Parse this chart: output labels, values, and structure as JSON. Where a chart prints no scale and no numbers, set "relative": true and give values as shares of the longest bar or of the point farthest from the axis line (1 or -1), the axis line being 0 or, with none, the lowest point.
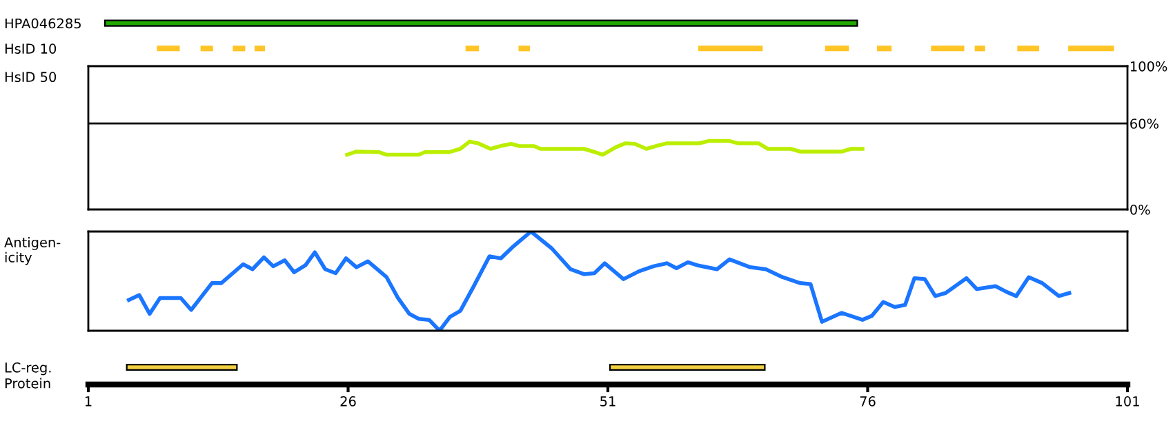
{
  "chart_data": [
    {
      "type": "bar",
      "orientation": "horizontal",
      "categories": [
        "HPA046285",
        "HsID 10"
      ],
      "xlim": [
        1,
        101
      ],
      "tick_labels": "y",
      "grid": false,
      "legend": false,
      "series": [
        {
          "color": "#22aa00",
          "base": [
            2.6,
            null
          ],
          "values": [
            72.4,
            null
          ]
        },
        {
          "color": "#ffc425",
          "base": [
            null,
            7.6
          ],
          "values": [
            null,
            2.2
          ]
        },
        {
          "color": "#ffc425",
          "base": [
            null,
            11.8
          ],
          "values": [
            null,
            1.2
          ]
        },
        {
          "color": "#ffc425",
          "base": [
            null,
            14.9
          ],
          "values": [
            null,
            1.2
          ]
        },
        {
          "color": "#ffc425",
          "base": [
            null,
            17.0
          ],
          "values": [
            null,
            1.0
          ]
        },
        {
          "color": "#ffc425",
          "base": [
            null,
            37.3
          ],
          "values": [
            null,
            1.3
          ]
        },
        {
          "color": "#ffc425",
          "base": [
            null,
            42.4
          ],
          "values": [
            null,
            1.1
          ]
        },
        {
          "color": "#ffc425",
          "base": [
            null,
            59.7
          ],
          "values": [
            null,
            6.2
          ]
        },
        {
          "color": "#ffc425",
          "base": [
            null,
            71.9
          ],
          "values": [
            null,
            2.3
          ]
        },
        {
          "color": "#ffc425",
          "base": [
            null,
            76.9
          ],
          "values": [
            null,
            1.4
          ]
        },
        {
          "color": "#ffc425",
          "base": [
            null,
            82.1
          ],
          "values": [
            null,
            3.2
          ]
        },
        {
          "color": "#ffc425",
          "base": [
            null,
            86.3
          ],
          "values": [
            null,
            1.0
          ]
        },
        {
          "color": "#ffc425",
          "base": [
            null,
            90.4
          ],
          "values": [
            null,
            2.1
          ]
        },
        {
          "color": "#ffc425",
          "base": [
            null,
            95.3
          ],
          "values": [
            null,
            4.4
          ]
        }
      ]
    },
    {
      "type": "line",
      "ylabel": "HsID 50",
      "xlim": [
        1,
        101
      ],
      "ylim": [
        0,
        100
      ],
      "yticks": [
        {
          "value": 100,
          "label": "100%"
        },
        {
          "value": 60,
          "label": "60%"
        },
        {
          "value": 0,
          "label": "0%"
        }
      ],
      "tick_labels": "y",
      "grid": false,
      "legend": false,
      "marker": "none",
      "line_style": "solid",
      "ref_lines": [
        {
          "axis": "y",
          "value": 60,
          "color": "#000000"
        }
      ],
      "series": [
        {
          "color": "#bbee00",
          "x": [
            25.9,
            26.8,
            29.0,
            29.7,
            32.8,
            33.4,
            35.7,
            36.8,
            37.7,
            38.5,
            39.7,
            40.8,
            41.7,
            42.5,
            43.9,
            44.5,
            48.7,
            49.6,
            50.5,
            51.8,
            52.7,
            53.6,
            54.7,
            55.6,
            56.7,
            59.8,
            60.7,
            62.7,
            63.5,
            65.5,
            66.4,
            68.6,
            69.5,
            73.5,
            74.4,
            75.5
          ],
          "values": [
            38.2,
            40.4,
            40,
            38.2,
            38.2,
            40,
            40,
            42.3,
            47.4,
            46.2,
            42.3,
            44.5,
            45.8,
            44.2,
            44.2,
            42.3,
            42.3,
            40.4,
            38.2,
            43.6,
            46.2,
            45.8,
            42.3,
            44.2,
            46.2,
            46.2,
            47.8,
            47.8,
            46.2,
            46.2,
            42.3,
            42.3,
            40.4,
            40.4,
            42.3,
            42.3
          ]
        }
      ]
    },
    {
      "type": "line",
      "ylabel": "Antigen-\nicity",
      "relative": true,
      "xlim": [
        1,
        101
      ],
      "tick_labels": false,
      "grid": false,
      "legend": false,
      "marker": "none",
      "line_style": "solid",
      "series": [
        {
          "color": "#1a75ff",
          "x": [
            4.9,
            5.9,
            6.9,
            7.9,
            9.9,
            10.9,
            12.9,
            13.8,
            15.9,
            16.8,
            17.9,
            18.8,
            19.9,
            20.8,
            21.9,
            22.8,
            23.8,
            24.8,
            25.8,
            26.8,
            27.9,
            29.7,
            30.8,
            31.9,
            32.8,
            33.8,
            34.8,
            35.8,
            36.8,
            38.1,
            39.6,
            40.7,
            41.9,
            43.6,
            45.6,
            47.4,
            48.7,
            49.7,
            50.7,
            52.5,
            54.0,
            55.4,
            56.7,
            57.6,
            58.7,
            59.6,
            61.5,
            62.7,
            64.7,
            66.2,
            67.8,
            69.5,
            70.5,
            71.6,
            73.5,
            75.5,
            76.4,
            77.5,
            78.6,
            79.6,
            80.5,
            81.5,
            82.5,
            83.5,
            85.5,
            86.5,
            88.3,
            89.4,
            90.3,
            91.5,
            92.8,
            94.4,
            95.4
          ],
          "values": [
            0.31,
            0.36,
            0.17,
            0.33,
            0.33,
            0.21,
            0.48,
            0.48,
            0.67,
            0.62,
            0.74,
            0.65,
            0.71,
            0.59,
            0.66,
            0.79,
            0.62,
            0.58,
            0.73,
            0.64,
            0.7,
            0.54,
            0.33,
            0.17,
            0.12,
            0.11,
            0,
            0.14,
            0.2,
            0.45,
            0.75,
            0.73,
            0.85,
            1,
            0.83,
            0.62,
            0.57,
            0.58,
            0.68,
            0.52,
            0.6,
            0.65,
            0.68,
            0.63,
            0.69,
            0.66,
            0.62,
            0.72,
            0.64,
            0.62,
            0.54,
            0.48,
            0.47,
            0.09,
            0.18,
            0.11,
            0.15,
            0.29,
            0.24,
            0.26,
            0.53,
            0.52,
            0.35,
            0.38,
            0.53,
            0.42,
            0.45,
            0.39,
            0.35,
            0.54,
            0.48,
            0.35,
            0.38
          ]
        }
      ]
    },
    {
      "type": "bar",
      "orientation": "horizontal",
      "categories": [
        "LC-reg."
      ],
      "xlabel": "Protein",
      "xlim": [
        1,
        101
      ],
      "xticks": [
        1,
        26,
        51,
        76,
        101
      ],
      "grid": false,
      "legend": false,
      "series": [
        {
          "color": "#f0d040",
          "base": [
            4.7
          ],
          "values": [
            10.6
          ]
        },
        {
          "color": "#f0d040",
          "base": [
            51.2
          ],
          "values": [
            14.9
          ]
        }
      ]
    }
  ]
}
